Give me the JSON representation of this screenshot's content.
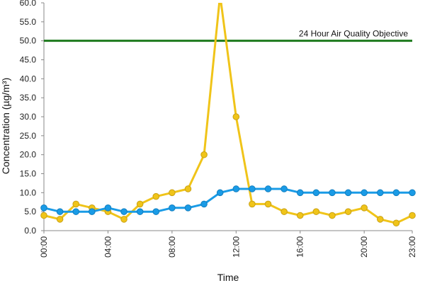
{
  "chart_data": {
    "type": "line",
    "title": "",
    "xlabel": "Time",
    "ylabel": "Concentration (µg/m³)",
    "x": [
      "00:00",
      "01:00",
      "02:00",
      "03:00",
      "04:00",
      "05:00",
      "06:00",
      "07:00",
      "08:00",
      "09:00",
      "10:00",
      "11:00",
      "12:00",
      "13:00",
      "14:00",
      "15:00",
      "16:00",
      "17:00",
      "18:00",
      "19:00",
      "20:00",
      "21:00",
      "22:00",
      "23:00"
    ],
    "x_tick_labels": [
      "00:00",
      "04:00",
      "08:00",
      "12:00",
      "16:00",
      "20:00",
      "23:00"
    ],
    "ylim": [
      0,
      60
    ],
    "y_tick_labels": [
      "0.0",
      "5.0",
      "10.0",
      "15.0",
      "20.0",
      "25.0",
      "30.0",
      "35.0",
      "40.0",
      "45.0",
      "50.0",
      "55.0",
      "60.0"
    ],
    "grid": false,
    "series": [
      {
        "color": "#f0c419",
        "values": [
          4,
          3,
          7,
          6,
          5,
          3,
          7,
          9,
          10,
          11,
          20,
          62,
          30,
          7,
          7,
          5,
          4,
          5,
          4,
          5,
          6,
          3,
          2,
          4
        ]
      },
      {
        "color": "#1a9be6",
        "values": [
          6,
          5,
          5,
          5,
          6,
          5,
          5,
          5,
          6,
          6,
          7,
          10,
          11,
          11,
          11,
          11,
          10,
          10,
          10,
          10,
          10,
          10,
          10,
          10
        ]
      }
    ],
    "reference_line": {
      "value": 50,
      "label": "24 Hour Air Quality Objective",
      "color": "#1d7a1d"
    }
  }
}
